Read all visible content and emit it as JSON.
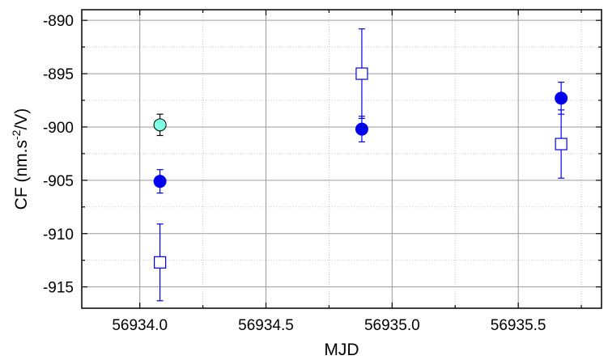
{
  "chart_data": {
    "type": "scatter",
    "xlabel": "MJD",
    "ylabel_base": "CF (nm.s",
    "ylabel_sup": "-2",
    "ylabel_tail": "/V)",
    "xlim": [
      56933.77,
      56935.83
    ],
    "ylim": [
      -917,
      -889
    ],
    "xticks": [
      56934.0,
      56934.5,
      56935.0,
      56935.5
    ],
    "xtick_labels": [
      "56934.0",
      "56934.5",
      "56935.0",
      "56935.5"
    ],
    "yticks": [
      -915,
      -910,
      -905,
      -900,
      -895,
      -890
    ],
    "ytick_labels": [
      "-915",
      "-910",
      "-905",
      "-900",
      "-895",
      "-890"
    ],
    "grid": true,
    "colors": {
      "blue": "#0000ee",
      "cyan_fill": "#7fffe6"
    },
    "series": [
      {
        "marker": "filled-circle",
        "color": "#0000ee",
        "fill": "#0000ee",
        "points": [
          {
            "x": 56934.08,
            "y": -905.1,
            "err": 1.1
          },
          {
            "x": 56934.88,
            "y": -900.2,
            "err": 1.2
          },
          {
            "x": 56935.67,
            "y": -897.3,
            "err": 1.5
          }
        ]
      },
      {
        "marker": "open-square",
        "color": "#0000ee",
        "fill": "#ffffff",
        "points": [
          {
            "x": 56934.08,
            "y": -912.7,
            "err": 3.6
          },
          {
            "x": 56934.88,
            "y": -895.0,
            "err": 4.2
          },
          {
            "x": 56935.67,
            "y": -901.6,
            "err": 3.2
          }
        ]
      },
      {
        "marker": "filled-circle",
        "color": "#000000",
        "fill": "#7fffe6",
        "points": [
          {
            "x": 56934.08,
            "y": -899.8,
            "err": 1.0
          }
        ]
      }
    ]
  }
}
